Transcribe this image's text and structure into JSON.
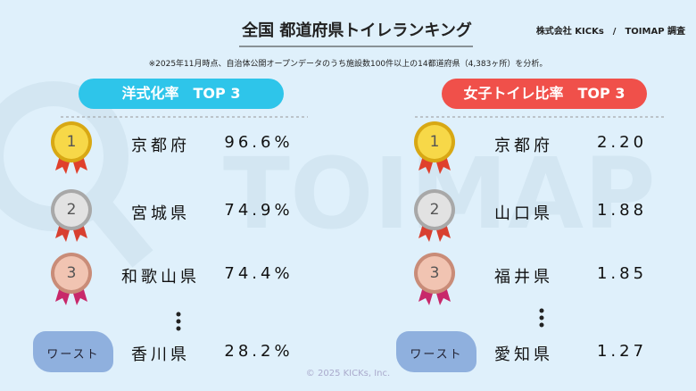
{
  "header": {
    "title": "全国 都道府県トイレランキング",
    "source": "株式会社 KICKs　/　TOIMAP 調査",
    "note": "※2025年11月時点、自治体公開オープンデータのうち施設数100件以上の14都道府県（4,383ヶ所）を分析。"
  },
  "watermark": "TOIMAP",
  "panels": [
    {
      "title": "洋式化率　TOP 3",
      "color": "#2ec5ea",
      "rows": [
        {
          "rank": "1",
          "name": "京都府",
          "value": "96.6%"
        },
        {
          "rank": "2",
          "name": "宮城県",
          "value": "74.9%"
        },
        {
          "rank": "3",
          "name": "和歌山県",
          "value": "74.4%"
        },
        {
          "rank": "ワースト",
          "name": "香川県",
          "value": "28.2%"
        }
      ]
    },
    {
      "title": "女子トイレ比率　TOP 3",
      "color": "#f0504a",
      "rows": [
        {
          "rank": "1",
          "name": "京都府",
          "value": "2.20"
        },
        {
          "rank": "2",
          "name": "山口県",
          "value": "1.88"
        },
        {
          "rank": "3",
          "name": "福井県",
          "value": "1.85"
        },
        {
          "rank": "ワースト",
          "name": "愛知県",
          "value": "1.27"
        }
      ]
    }
  ],
  "footer": "© 2025 KICKs, Inc."
}
